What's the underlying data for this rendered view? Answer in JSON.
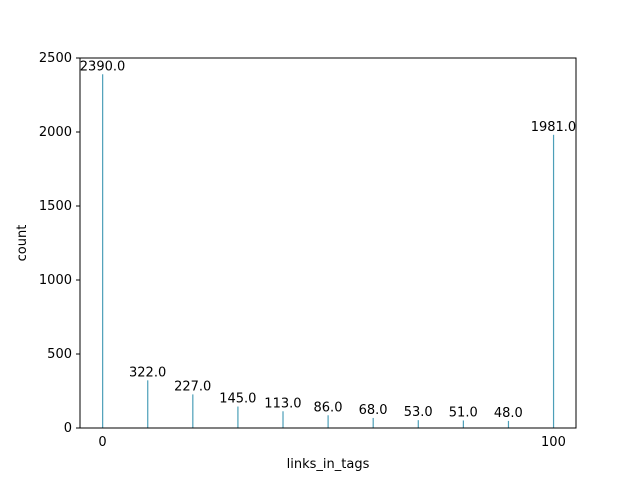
{
  "chart_data": {
    "type": "bar",
    "title": "",
    "xlabel": "links_in_tags",
    "ylabel": "count",
    "ylim": [
      0,
      2500
    ],
    "yticks": [
      0,
      500,
      1000,
      1500,
      2000,
      2500
    ],
    "bar_color": "#4c9fb8",
    "grid": false,
    "legend": "none",
    "first_category": "0",
    "last_category": "100",
    "first_value": 2390,
    "last_value": 1981,
    "first_label": "2390.0",
    "last_label": "1981.0",
    "notable_bars": [
      {
        "label": "322.0",
        "value": 322
      },
      {
        "label": "227.0",
        "value": 227
      },
      {
        "label": "145.0",
        "value": 145
      },
      {
        "label": "113.0",
        "value": 113
      },
      {
        "label": "86.0",
        "value": 86
      },
      {
        "label": "68.0",
        "value": 68
      },
      {
        "label": "53.0",
        "value": 53
      },
      {
        "label": "51.0",
        "value": 51
      },
      {
        "label": "48.0",
        "value": 48
      }
    ]
  }
}
